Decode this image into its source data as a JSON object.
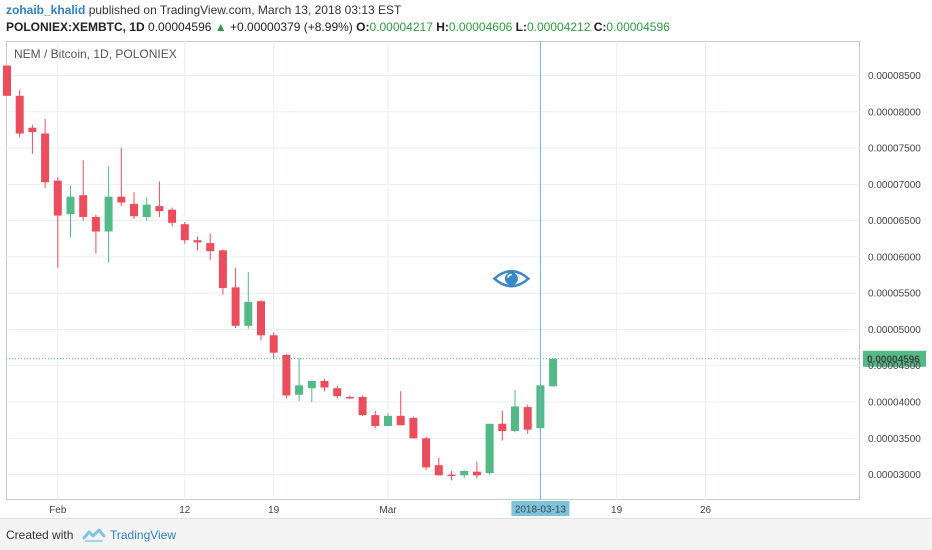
{
  "header": {
    "author": "zohaib_khalid",
    "published_text": "published on TradingView.com, March 13, 2018 03:13 EST",
    "symbol": "POLONIEX:XEMBTC, 1D",
    "last_price": "0.00004596",
    "change": "+0.00000379 (+8.99%)",
    "open_label": "O:",
    "open_value": "0.00004217",
    "high_label": "H:",
    "high_value": "0.00004606",
    "low_label": "L:",
    "low_value": "0.00004212",
    "close_label": "C:",
    "close_value": "0.00004596"
  },
  "chart_title": "NEM / Bitcoin, 1D, POLONIEX",
  "footer": {
    "created_with": "Created with",
    "brand": "TradingView"
  },
  "colors": {
    "up": "#53b987",
    "down": "#eb4d5c",
    "grid": "#e9eef2",
    "crosshair": "#64b5d6",
    "price_label_bg": "#53b987"
  },
  "chart_data": {
    "type": "candlestick",
    "ylim": [
      2.65e-05,
      8.975e-05
    ],
    "yticks": [
      "0.00003000",
      "0.00003500",
      "0.00004000",
      "0.00004500",
      "0.00005000",
      "0.00005500",
      "0.00006000",
      "0.00006500",
      "0.00007000",
      "0.00007500",
      "0.00008000",
      "0.00008500"
    ],
    "ytick_values": [
      3e-05,
      3.5e-05,
      4e-05,
      4.5e-05,
      5e-05,
      5.5e-05,
      6e-05,
      6.5e-05,
      7e-05,
      7.5e-05,
      8e-05,
      8.5e-05
    ],
    "current_price_label": "0.00004596",
    "current_price": 4.596e-05,
    "xtick_labels": [
      "Feb",
      "12",
      "19",
      "Mar",
      "19",
      "26"
    ],
    "xtick_index": [
      4,
      14,
      21,
      30,
      48,
      55
    ],
    "crosshair_label": "2018-03-13",
    "crosshair_index": 42,
    "eye_price": 5.7e-05,
    "total_slots": 60,
    "candles": [
      {
        "o": 8.637e-05,
        "h": 8.637e-05,
        "l": 8.22e-05,
        "c": 8.22e-05
      },
      {
        "o": 8.22e-05,
        "h": 8.3e-05,
        "l": 7.65e-05,
        "c": 7.7e-05
      },
      {
        "o": 7.78e-05,
        "h": 7.82e-05,
        "l": 7.42e-05,
        "c": 7.72e-05
      },
      {
        "o": 7.7e-05,
        "h": 7.9e-05,
        "l": 6.95e-05,
        "c": 7.03e-05
      },
      {
        "o": 7.05e-05,
        "h": 7.1e-05,
        "l": 5.85e-05,
        "c": 6.57e-05
      },
      {
        "o": 6.59e-05,
        "h": 6.98e-05,
        "l": 6.27e-05,
        "c": 6.83e-05
      },
      {
        "o": 6.85e-05,
        "h": 7.33e-05,
        "l": 6.5e-05,
        "c": 6.55e-05
      },
      {
        "o": 6.55e-05,
        "h": 6.58e-05,
        "l": 6.05e-05,
        "c": 6.35e-05
      },
      {
        "o": 6.35e-05,
        "h": 7.25e-05,
        "l": 5.92e-05,
        "c": 6.83e-05
      },
      {
        "o": 6.83e-05,
        "h": 7.5e-05,
        "l": 6.7e-05,
        "c": 6.75e-05
      },
      {
        "o": 6.73e-05,
        "h": 6.89e-05,
        "l": 6.52e-05,
        "c": 6.56e-05
      },
      {
        "o": 6.55e-05,
        "h": 6.82e-05,
        "l": 6.5e-05,
        "c": 6.72e-05
      },
      {
        "o": 6.7e-05,
        "h": 7.04e-05,
        "l": 6.55e-05,
        "c": 6.63e-05
      },
      {
        "o": 6.65e-05,
        "h": 6.68e-05,
        "l": 6.42e-05,
        "c": 6.47e-05
      },
      {
        "o": 6.45e-05,
        "h": 6.48e-05,
        "l": 6.18e-05,
        "c": 6.23e-05
      },
      {
        "o": 6.23e-05,
        "h": 6.28e-05,
        "l": 6.09e-05,
        "c": 6.2e-05
      },
      {
        "o": 6.19e-05,
        "h": 6.32e-05,
        "l": 5.96e-05,
        "c": 6.08e-05
      },
      {
        "o": 6.09e-05,
        "h": 6.1e-05,
        "l": 5.48e-05,
        "c": 5.57e-05
      },
      {
        "o": 5.58e-05,
        "h": 5.85e-05,
        "l": 5.02e-05,
        "c": 5.05e-05
      },
      {
        "o": 5.05e-05,
        "h": 5.79e-05,
        "l": 5.01e-05,
        "c": 5.38e-05
      },
      {
        "o": 5.39e-05,
        "h": 5.4e-05,
        "l": 4.85e-05,
        "c": 4.92e-05
      },
      {
        "o": 4.92e-05,
        "h": 4.96e-05,
        "l": 4.59e-05,
        "c": 4.68e-05
      },
      {
        "o": 4.65e-05,
        "h": 4.66e-05,
        "l": 4.05e-05,
        "c": 4.09e-05
      },
      {
        "o": 4.1e-05,
        "h": 4.61e-05,
        "l": 4.01e-05,
        "c": 4.23e-05
      },
      {
        "o": 4.19e-05,
        "h": 4.29e-05,
        "l": 4e-05,
        "c": 4.29e-05
      },
      {
        "o": 4.29e-05,
        "h": 4.32e-05,
        "l": 4.15e-05,
        "c": 4.2e-05
      },
      {
        "o": 4.19e-05,
        "h": 4.22e-05,
        "l": 4.05e-05,
        "c": 4.08e-05
      },
      {
        "o": 4.07e-05,
        "h": 4.09e-05,
        "l": 4.04e-05,
        "c": 4.05e-05
      },
      {
        "o": 4.07e-05,
        "h": 4.09e-05,
        "l": 3.81e-05,
        "c": 3.82e-05
      },
      {
        "o": 3.82e-05,
        "h": 3.88e-05,
        "l": 3.64e-05,
        "c": 3.67e-05
      },
      {
        "o": 3.67e-05,
        "h": 3.85e-05,
        "l": 3.67e-05,
        "c": 3.81e-05
      },
      {
        "o": 3.81e-05,
        "h": 4.15e-05,
        "l": 3.7e-05,
        "c": 3.68e-05
      },
      {
        "o": 3.78e-05,
        "h": 3.8e-05,
        "l": 3.5e-05,
        "c": 3.5e-05
      },
      {
        "o": 3.5e-05,
        "h": 3.52e-05,
        "l": 3.06e-05,
        "c": 3.1e-05
      },
      {
        "o": 3.13e-05,
        "h": 3.23e-05,
        "l": 2.99e-05,
        "c": 2.99e-05
      },
      {
        "o": 3e-05,
        "h": 3.05e-05,
        "l": 2.92e-05,
        "c": 2.98e-05
      },
      {
        "o": 2.99e-05,
        "h": 3.06e-05,
        "l": 2.95e-05,
        "c": 3.05e-05
      },
      {
        "o": 3.04e-05,
        "h": 3.18e-05,
        "l": 2.95e-05,
        "c": 2.99e-05
      },
      {
        "o": 3.02e-05,
        "h": 3.7e-05,
        "l": 3e-05,
        "c": 3.7e-05
      },
      {
        "o": 3.7e-05,
        "h": 3.88e-05,
        "l": 3.47e-05,
        "c": 3.6e-05
      },
      {
        "o": 3.6e-05,
        "h": 4.17e-05,
        "l": 3.58e-05,
        "c": 3.94e-05
      },
      {
        "o": 3.93e-05,
        "h": 3.96e-05,
        "l": 3.56e-05,
        "c": 3.62e-05
      },
      {
        "o": 3.64e-05,
        "h": 4.23e-05,
        "l": 3.59e-05,
        "c": 4.23e-05
      },
      {
        "o": 4.217e-05,
        "h": 4.606e-05,
        "l": 4.212e-05,
        "c": 4.596e-05
      }
    ]
  }
}
